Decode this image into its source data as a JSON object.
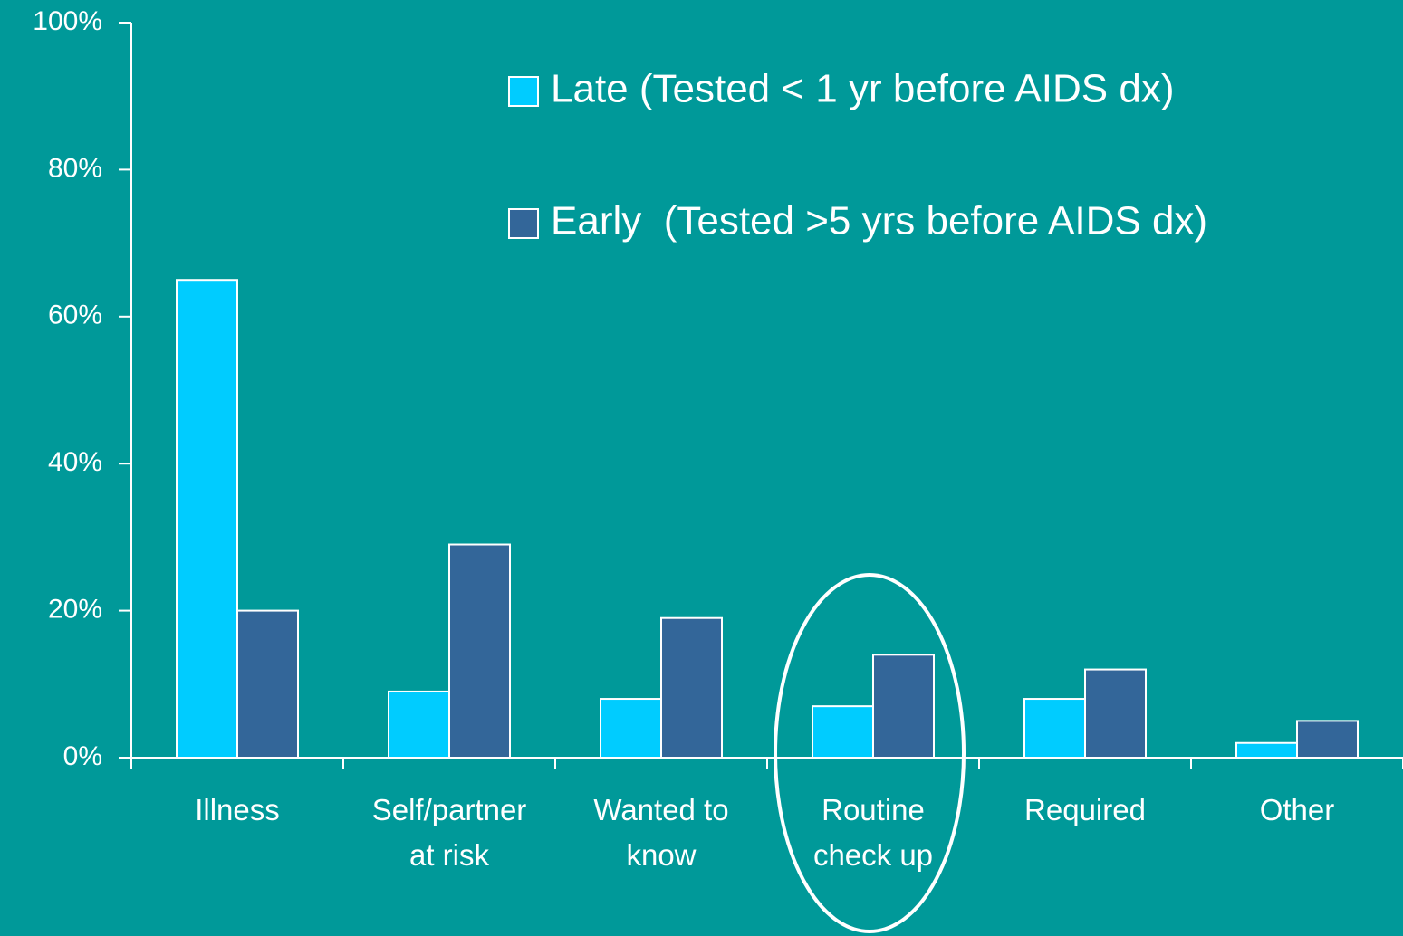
{
  "chart_data": {
    "type": "bar",
    "categories": [
      "Illness",
      "Self/partner\nat risk",
      "Wanted to\nknow",
      "Routine\ncheck up",
      "Required",
      "Other"
    ],
    "series": [
      {
        "name": "Late (Tested < 1 yr before AIDS dx)",
        "color": "#00ccff",
        "values": [
          65,
          9,
          8,
          7,
          8,
          2
        ]
      },
      {
        "name": "Early  (Tested >5 yrs before AIDS dx)",
        "color": "#336699",
        "values": [
          20,
          29,
          19,
          14,
          12,
          5
        ]
      }
    ],
    "ylim": [
      0,
      100
    ],
    "yticks": [
      {
        "value": 0,
        "label": "0%"
      },
      {
        "value": 20,
        "label": "20%"
      },
      {
        "value": 40,
        "label": "40%"
      },
      {
        "value": 60,
        "label": "60%"
      },
      {
        "value": 80,
        "label": "80%"
      },
      {
        "value": 100,
        "label": "100%"
      }
    ],
    "legend": "top-right",
    "grid": false
  }
}
